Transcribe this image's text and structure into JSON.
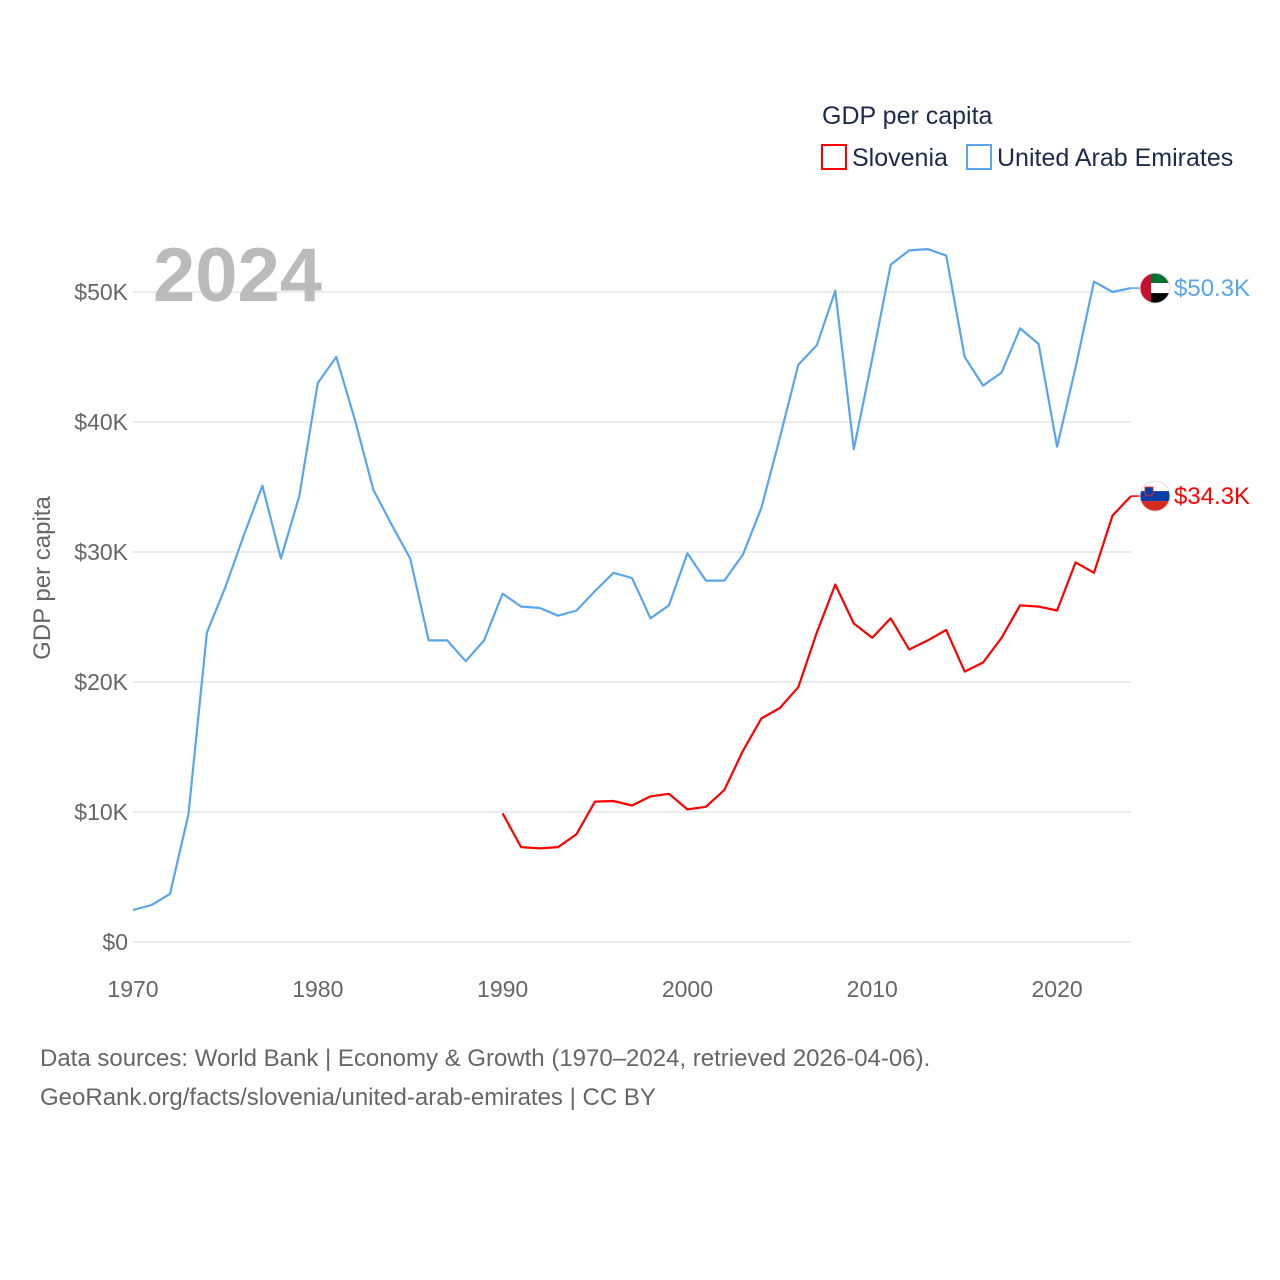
{
  "chart_data": {
    "type": "line",
    "title": "GDP per capita",
    "ylabel": "GDP per capita",
    "xlabel": "",
    "year_label": "2024",
    "xlim": [
      1970,
      2024
    ],
    "ylim": [
      0,
      55000
    ],
    "xticks": [
      1970,
      1980,
      1990,
      2000,
      2010,
      2020
    ],
    "xtick_labels": [
      "1970",
      "1980",
      "1990",
      "2000",
      "2010",
      "2020"
    ],
    "yticks": [
      0,
      10000,
      20000,
      30000,
      40000,
      50000
    ],
    "ytick_labels": [
      "$0",
      "$10K",
      "$20K",
      "$30K",
      "$40K",
      "$50K"
    ],
    "grid": true,
    "legend_placement": "top-right",
    "series": [
      {
        "name": "Slovenia",
        "color": "#ff0000",
        "end_label": "$34.3K",
        "flag": "slovenia-flag",
        "x": [
          1990,
          1991,
          1992,
          1993,
          1994,
          1995,
          1996,
          1997,
          1998,
          1999,
          2000,
          2001,
          2002,
          2003,
          2004,
          2005,
          2006,
          2007,
          2008,
          2009,
          2010,
          2011,
          2012,
          2013,
          2014,
          2015,
          2016,
          2017,
          2018,
          2019,
          2020,
          2021,
          2022,
          2023,
          2024
        ],
        "values": [
          9900,
          7300,
          7200,
          7300,
          8300,
          10800,
          10850,
          10500,
          11200,
          11400,
          10200,
          10400,
          11700,
          14700,
          17200,
          18000,
          19600,
          23800,
          27500,
          24500,
          23400,
          24900,
          22500,
          23200,
          24000,
          20800,
          21500,
          23400,
          25900,
          25800,
          25500,
          29200,
          28400,
          32800,
          34300
        ]
      },
      {
        "name": "United Arab Emirates",
        "color": "#5aa5ec",
        "end_label": "$50.3K",
        "flag": "uae-flag",
        "x": [
          1970,
          1971,
          1972,
          1973,
          1974,
          1975,
          1976,
          1977,
          1978,
          1979,
          1980,
          1981,
          1982,
          1983,
          1984,
          1985,
          1986,
          1987,
          1988,
          1989,
          1990,
          1991,
          1992,
          1993,
          1994,
          1995,
          1996,
          1997,
          1998,
          1999,
          2000,
          2001,
          2002,
          2003,
          2004,
          2005,
          2006,
          2007,
          2008,
          2009,
          2010,
          2011,
          2012,
          2013,
          2014,
          2015,
          2016,
          2017,
          2018,
          2019,
          2020,
          2021,
          2022,
          2023,
          2024
        ],
        "values": [
          2460,
          2850,
          3700,
          9800,
          23800,
          27300,
          31300,
          35100,
          29500,
          34300,
          43000,
          45000,
          40200,
          34800,
          32100,
          29500,
          23200,
          23200,
          21600,
          23200,
          26800,
          25800,
          25700,
          25100,
          25500,
          27000,
          28400,
          28000,
          24900,
          25900,
          29900,
          27800,
          27800,
          29800,
          33400,
          38800,
          44400,
          45900,
          50100,
          37900,
          44900,
          52100,
          53200,
          53300,
          52800,
          45000,
          42800,
          43800,
          47200,
          46000,
          38100,
          44200,
          50800,
          50000,
          50300
        ]
      }
    ]
  },
  "footer": {
    "line1": "Data sources: World Bank | Economy & Growth (1970–2024, retrieved 2026-04-06).",
    "line2": "GeoRank.org/facts/slovenia/united-arab-emirates | CC BY"
  }
}
